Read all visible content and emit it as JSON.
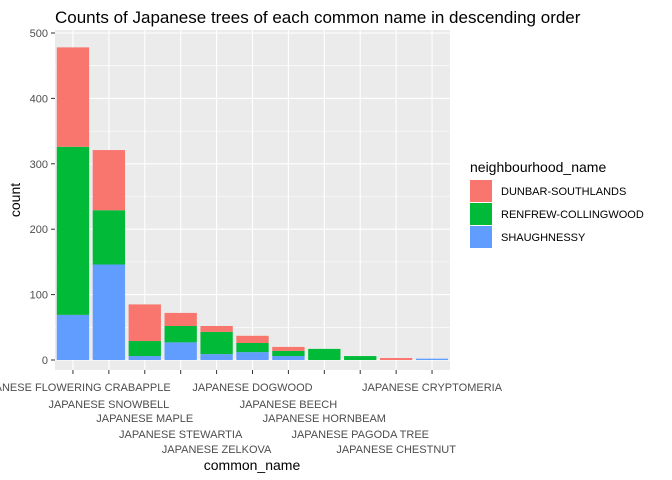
{
  "chart_data": {
    "type": "bar",
    "stacked": true,
    "title": "Counts of Japanese trees of each common name in descending order",
    "xlabel": "common_name",
    "ylabel": "count",
    "ylim": [
      0,
      500
    ],
    "yticks": [
      0,
      100,
      200,
      300,
      400,
      500
    ],
    "legend": {
      "title": "neighbourhood_name",
      "placement": "right"
    },
    "categories": [
      "JAPANESE FLOWERING CRABAPPLE",
      "JAPANESE SNOWBELL",
      "JAPANESE MAPLE",
      "JAPANESE STEWARTIA",
      "JAPANESE ZELKOVA",
      "JAPANESE DOGWOOD",
      "JAPANESE BEECH",
      "JAPANESE HORNBEAM",
      "JAPANESE PAGODA TREE",
      "JAPANESE CHESTNUT",
      "JAPANESE CRYPTOMERIA"
    ],
    "series": [
      {
        "name": "DUNBAR-SOUTHLANDS",
        "color": "#F8766D",
        "values": [
          152,
          92,
          56,
          20,
          9,
          11,
          6,
          0,
          0,
          3,
          0
        ]
      },
      {
        "name": "RENFREW-COLLINGWOOD",
        "color": "#00BA38",
        "values": [
          257,
          83,
          23,
          25,
          34,
          14,
          8,
          17,
          6,
          0,
          0
        ]
      },
      {
        "name": "SHAUGHNESSY",
        "color": "#619CFF",
        "values": [
          69,
          146,
          6,
          27,
          9,
          12,
          6,
          0,
          0,
          0,
          2
        ]
      }
    ]
  }
}
